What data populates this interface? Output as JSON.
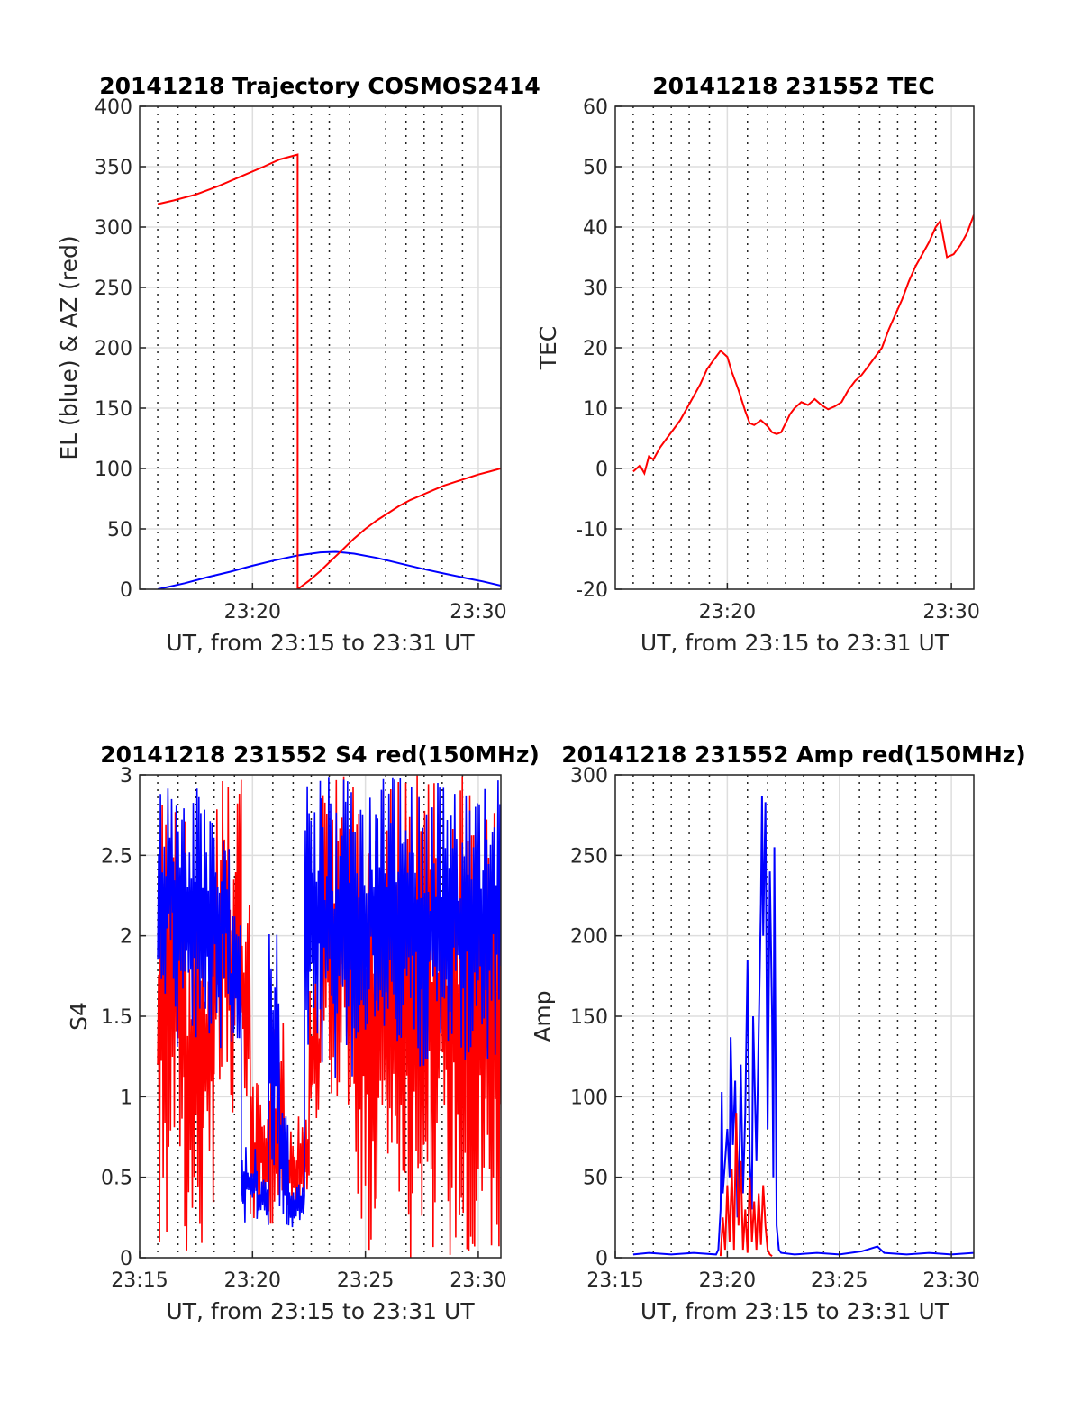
{
  "colors": {
    "el": "#0000ff",
    "az": "#ff0000",
    "s4_red": "#ff0000",
    "s4_blue": "#0000ff",
    "amp_red": "#ff0000",
    "amp_blue": "#0000ff"
  },
  "chart_data": [
    {
      "id": "trajectory",
      "type": "line",
      "title": "20141218 Trajectory COSMOS2414",
      "xlabel": "UT, from 23:15 to 23:31 UT",
      "ylabel": "EL (blue) & AZ (red)",
      "xlim": [
        15.0,
        31.0
      ],
      "ylim": [
        0,
        400
      ],
      "yticks": [
        0,
        50,
        100,
        150,
        200,
        250,
        300,
        350,
        400
      ],
      "xticks": [
        {
          "v": 20,
          "label": "23:20"
        },
        {
          "v": 30,
          "label": "23:30"
        }
      ],
      "grid": true,
      "series": [
        {
          "color_key": "el",
          "x": [
            15.8,
            17,
            18,
            19,
            20,
            21,
            22,
            23,
            23.7,
            24.5,
            25.5,
            26.5,
            27.5,
            28.5,
            29.5,
            30.2,
            31.0
          ],
          "y": [
            0,
            5,
            10,
            14.5,
            19.5,
            24,
            28,
            30.5,
            31,
            29.5,
            26,
            21.5,
            17,
            13,
            9,
            6.5,
            3
          ]
        },
        {
          "color_key": "az",
          "x": [
            15.8,
            16.5,
            17.5,
            18.5,
            19.5,
            20.5,
            21.2,
            22.0,
            22.0,
            22.5,
            23,
            23.5,
            24,
            24.5,
            25,
            25.5,
            26,
            26.5,
            27,
            27.5,
            28,
            28.5,
            29,
            29.5,
            30,
            30.5,
            31.0
          ],
          "y": [
            319,
            322,
            327,
            334,
            342,
            350,
            356,
            360,
            0,
            7,
            15,
            24,
            33,
            42,
            50,
            57,
            63,
            69,
            74,
            78,
            82,
            86,
            89,
            92,
            95,
            97.5,
            100
          ]
        }
      ]
    },
    {
      "id": "tec",
      "type": "line",
      "title": "20141218 231552 TEC",
      "xlabel": "UT, from 23:15 to 23:31 UT",
      "ylabel": "TEC",
      "xlim": [
        15.0,
        31.0
      ],
      "ylim": [
        -20,
        60
      ],
      "yticks": [
        -20,
        -10,
        0,
        10,
        20,
        30,
        40,
        50,
        60
      ],
      "xticks": [
        {
          "v": 20,
          "label": "23:20"
        },
        {
          "v": 30,
          "label": "23:30"
        }
      ],
      "grid": true,
      "series": [
        {
          "color_key": "az",
          "x": [
            15.8,
            16.1,
            16.3,
            16.5,
            16.7,
            17.0,
            17.3,
            17.6,
            17.9,
            18.2,
            18.5,
            18.8,
            19.1,
            19.4,
            19.7,
            20.0,
            20.2,
            20.5,
            20.8,
            21.0,
            21.2,
            21.5,
            21.8,
            22.0,
            22.2,
            22.4,
            22.6,
            22.8,
            23.0,
            23.3,
            23.6,
            23.9,
            24.2,
            24.5,
            24.8,
            25.1,
            25.4,
            25.7,
            26.0,
            26.3,
            26.6,
            26.9,
            27.2,
            27.5,
            27.8,
            28.1,
            28.4,
            28.7,
            29.0,
            29.3,
            29.5,
            29.8,
            30.1,
            30.4,
            30.7,
            31.0
          ],
          "y": [
            -0.5,
            0.5,
            -0.8,
            2,
            1.5,
            3.5,
            5,
            6.5,
            8,
            10,
            12,
            14,
            16.5,
            18,
            19.5,
            18.5,
            16,
            13,
            9.5,
            7.5,
            7.2,
            8,
            7,
            6,
            5.7,
            6,
            7.5,
            9,
            10,
            11,
            10.5,
            11.5,
            10.5,
            9.8,
            10.3,
            11,
            13,
            14.5,
            15.5,
            17,
            18.5,
            20,
            23,
            25.5,
            28,
            31,
            33.5,
            35.5,
            37.5,
            40,
            41,
            35,
            35.5,
            37,
            39,
            42
          ]
        }
      ]
    },
    {
      "id": "s4",
      "type": "line",
      "title": "20141218 231552 S4 red(150MHz)",
      "xlabel": "UT, from 23:15 to 23:31 UT",
      "ylabel": "S4",
      "xlim": [
        15.0,
        31.0
      ],
      "ylim": [
        0,
        3
      ],
      "yticks": [
        "0",
        "0.5",
        "1",
        "1.5",
        "2",
        "2.5",
        "3"
      ],
      "xticks": [
        {
          "v": 15,
          "label": "23:15"
        },
        {
          "v": 20,
          "label": "23:20"
        },
        {
          "v": 25,
          "label": "23:25"
        },
        {
          "v": 30,
          "label": "23:30"
        }
      ],
      "grid": true,
      "note_values": "noisy traces; envelope segments [x_start, x_end, y_low, y_high] for red and blue",
      "series": [
        {
          "color_key": "s4_red",
          "segments": [
            [
              15.8,
              16.2,
              0,
              3
            ],
            [
              16.2,
              17.0,
              0.5,
              2.8
            ],
            [
              17.0,
              18.3,
              0,
              2.5
            ],
            [
              18.3,
              19.5,
              0.8,
              3
            ],
            [
              19.5,
              19.9,
              1.0,
              2.2
            ],
            [
              19.9,
              20.8,
              0.2,
              1.1
            ],
            [
              20.8,
              21.4,
              0.2,
              1.5
            ],
            [
              21.4,
              22.0,
              0.2,
              0.9
            ],
            [
              22.0,
              22.5,
              0.3,
              1.0
            ],
            [
              22.5,
              23.0,
              0.8,
              1.8
            ],
            [
              23.0,
              24.5,
              0.9,
              3
            ],
            [
              24.5,
              25.5,
              0,
              3
            ],
            [
              25.5,
              26.5,
              0.3,
              3
            ],
            [
              26.5,
              28.0,
              0,
              3
            ],
            [
              28.0,
              29.5,
              0,
              3
            ],
            [
              29.5,
              31.0,
              0,
              3
            ]
          ]
        },
        {
          "color_key": "s4_blue",
          "segments": [
            [
              15.8,
              16.5,
              1.6,
              3
            ],
            [
              16.5,
              17.5,
              1.3,
              3
            ],
            [
              17.5,
              19.0,
              1.3,
              3
            ],
            [
              19.0,
              19.5,
              1.2,
              2.2
            ],
            [
              19.5,
              20.2,
              0.2,
              0.7
            ],
            [
              20.2,
              20.7,
              0.2,
              0.5
            ],
            [
              20.7,
              21.2,
              0.5,
              2.2
            ],
            [
              21.2,
              21.6,
              0.2,
              1.0
            ],
            [
              21.6,
              22.3,
              0.15,
              0.5
            ],
            [
              22.3,
              23.0,
              1.2,
              3
            ],
            [
              23.0,
              25.0,
              1.1,
              3
            ],
            [
              25.0,
              27.0,
              1.3,
              3
            ],
            [
              27.0,
              29.0,
              1.1,
              3
            ],
            [
              29.0,
              31.0,
              1.2,
              3
            ]
          ]
        }
      ]
    },
    {
      "id": "amp",
      "type": "line",
      "title": "20141218 231552 Amp red(150MHz)",
      "xlabel": "UT, from 23:15 to 23:31 UT",
      "ylabel": "Amp",
      "xlim": [
        15.0,
        31.0
      ],
      "ylim": [
        0,
        300
      ],
      "yticks": [
        0,
        50,
        100,
        150,
        200,
        250,
        300
      ],
      "xticks": [
        {
          "v": 15,
          "label": "23:15"
        },
        {
          "v": 20,
          "label": "23:20"
        },
        {
          "v": 25,
          "label": "23:25"
        },
        {
          "v": 30,
          "label": "23:30"
        }
      ],
      "grid": true,
      "series": [
        {
          "color_key": "amp_blue",
          "x": [
            15.8,
            16.5,
            17.5,
            18.5,
            19.5,
            19.6,
            19.7,
            19.75,
            19.8,
            19.9,
            20.0,
            20.1,
            20.15,
            20.25,
            20.35,
            20.45,
            20.55,
            20.6,
            20.7,
            20.8,
            20.9,
            21.0,
            21.1,
            21.15,
            21.3,
            21.4,
            21.5,
            21.55,
            21.6,
            21.7,
            21.8,
            21.9,
            22.0,
            22.05,
            22.1,
            22.2,
            22.3,
            22.4,
            23.0,
            24.0,
            25.0,
            26.0,
            26.7,
            27.0,
            28.0,
            29.0,
            30.0,
            31.0
          ],
          "y": [
            2,
            3,
            2,
            3,
            2,
            5,
            30,
            103,
            40,
            60,
            80,
            50,
            137,
            70,
            110,
            25,
            70,
            120,
            40,
            90,
            185,
            60,
            30,
            150,
            60,
            140,
            220,
            287,
            200,
            283,
            80,
            240,
            150,
            50,
            255,
            20,
            5,
            3,
            2,
            3,
            2,
            4,
            7,
            3,
            2,
            3,
            2,
            3
          ]
        },
        {
          "color_key": "amp_red",
          "x": [
            19.7,
            19.8,
            19.9,
            20.0,
            20.1,
            20.2,
            20.3,
            20.4,
            20.5,
            20.6,
            20.7,
            20.8,
            20.9,
            21.0,
            21.1,
            21.2,
            21.3,
            21.4,
            21.5,
            21.6,
            21.7,
            21.8,
            21.9,
            22.0
          ],
          "y": [
            1,
            25,
            5,
            45,
            10,
            55,
            5,
            90,
            20,
            60,
            5,
            30,
            3,
            50,
            10,
            35,
            5,
            40,
            8,
            45,
            20,
            5,
            2,
            1
          ]
        }
      ]
    }
  ]
}
